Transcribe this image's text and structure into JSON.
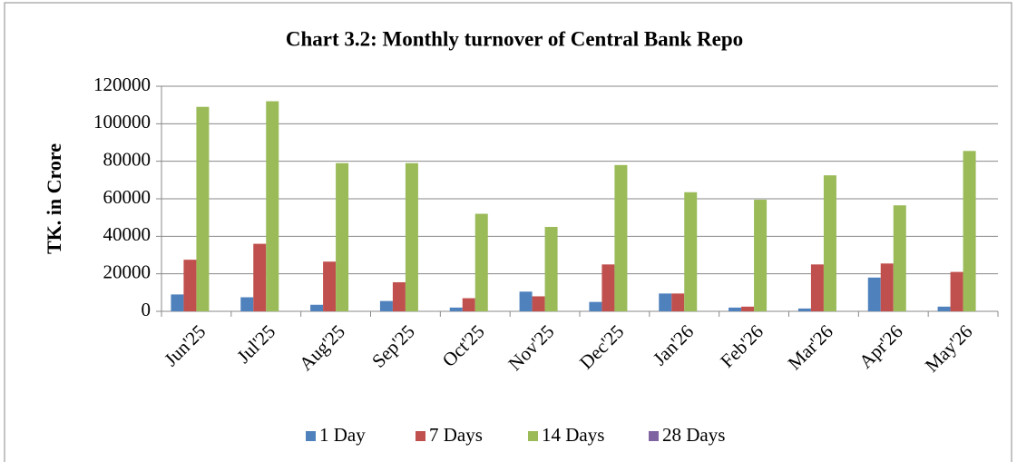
{
  "chart_data": {
    "type": "bar",
    "title": "Chart 3.2: Monthly turnover of Central Bank Repo",
    "y_label": "TK. in Crore",
    "categories": [
      "Jun'25",
      "Jul'25",
      "Aug'25",
      "Sep'25",
      "Oct'25",
      "Nov'25",
      "Dec'25",
      "Jan'26",
      "Feb'26",
      "Mar'26",
      "Apr'26",
      "May'26"
    ],
    "series": [
      {
        "name": "1 Day",
        "color": "#4f81bd",
        "values": [
          9000,
          7500,
          3500,
          5500,
          2000,
          10500,
          5000,
          9500,
          2000,
          1500,
          18000,
          2500
        ]
      },
      {
        "name": "7 Days",
        "color": "#c0504d",
        "values": [
          27500,
          36000,
          26500,
          15500,
          7000,
          8000,
          25000,
          9500,
          2500,
          25000,
          25500,
          21000
        ]
      },
      {
        "name": "14 Days",
        "color": "#9bbb59",
        "values": [
          109000,
          112000,
          79000,
          79000,
          52000,
          45000,
          78000,
          63500,
          59500,
          72500,
          56500,
          85500
        ]
      },
      {
        "name": "28 Days",
        "color": "#8064a2",
        "values": [
          0,
          0,
          0,
          0,
          0,
          0,
          0,
          0,
          0,
          0,
          0,
          0
        ]
      }
    ],
    "ylim": [
      0,
      120000
    ],
    "yticks": [
      0,
      20000,
      40000,
      60000,
      80000,
      100000,
      120000
    ],
    "grid": true,
    "legend": "bottom"
  }
}
